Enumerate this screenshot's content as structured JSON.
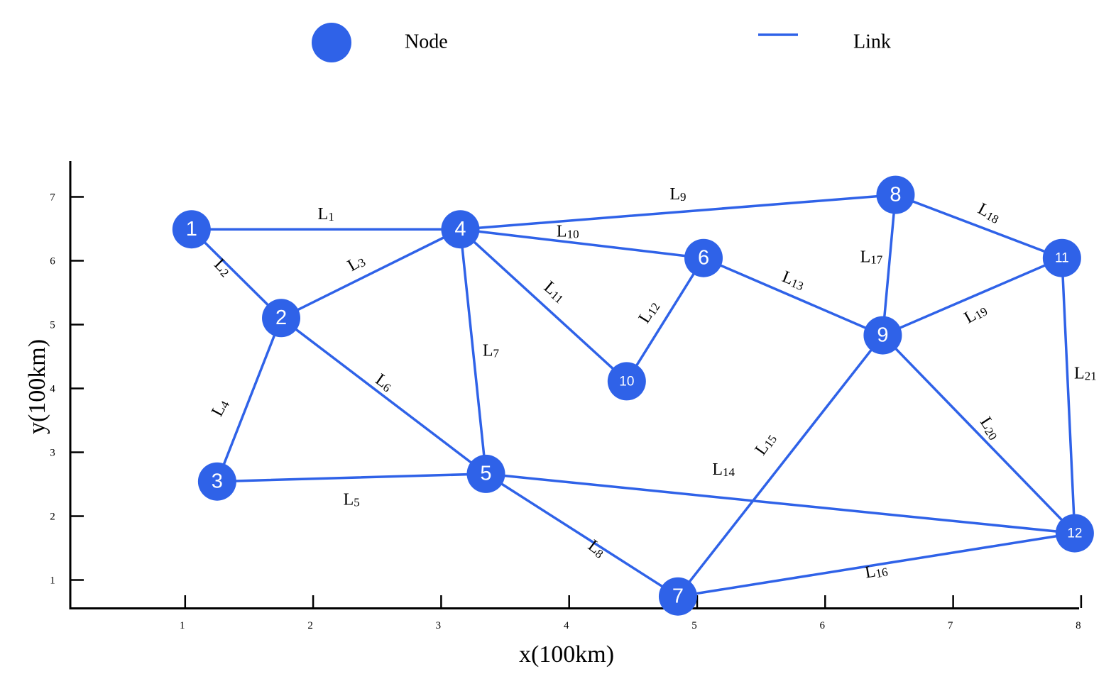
{
  "chart_data": {
    "type": "network",
    "legend": {
      "node_label": "Node",
      "link_label": "Link",
      "placement": "top"
    },
    "xlabel": "x(100km)",
    "ylabel": "y(100km)",
    "x_ticks": [
      "1",
      "2",
      "3",
      "4",
      "5",
      "6",
      "7",
      "8"
    ],
    "y_ticks": [
      "1",
      "2",
      "3",
      "4",
      "5",
      "6",
      "7"
    ],
    "xlim": [
      0.1,
      8.1
    ],
    "ylim": [
      0.1,
      7.2
    ],
    "colors": {
      "node": "#2f62e8",
      "link": "#2f62e8",
      "axis": "#000000"
    },
    "nodes": [
      {
        "id": "1",
        "x": 1.05,
        "y": 6.47
      },
      {
        "id": "2",
        "x": 1.75,
        "y": 5.08
      },
      {
        "id": "3",
        "x": 1.25,
        "y": 2.52
      },
      {
        "id": "4",
        "x": 3.15,
        "y": 6.47
      },
      {
        "id": "5",
        "x": 3.35,
        "y": 2.64
      },
      {
        "id": "6",
        "x": 5.05,
        "y": 6.02
      },
      {
        "id": "7",
        "x": 4.85,
        "y": 0.72
      },
      {
        "id": "8",
        "x": 6.55,
        "y": 7.01
      },
      {
        "id": "9",
        "x": 6.45,
        "y": 4.81
      },
      {
        "id": "10",
        "x": 4.45,
        "y": 4.09
      },
      {
        "id": "11",
        "x": 7.85,
        "y": 6.02
      },
      {
        "id": "12",
        "x": 7.95,
        "y": 1.71
      }
    ],
    "links": [
      {
        "label": "L",
        "sub": "1",
        "from": "1",
        "to": "4"
      },
      {
        "label": "L",
        "sub": "2",
        "from": "1",
        "to": "2"
      },
      {
        "label": "L",
        "sub": "3",
        "from": "2",
        "to": "4"
      },
      {
        "label": "L",
        "sub": "4",
        "from": "2",
        "to": "3"
      },
      {
        "label": "L",
        "sub": "5",
        "from": "3",
        "to": "5"
      },
      {
        "label": "L",
        "sub": "6",
        "from": "2",
        "to": "5"
      },
      {
        "label": "L",
        "sub": "7",
        "from": "4",
        "to": "5"
      },
      {
        "label": "L",
        "sub": "8",
        "from": "5",
        "to": "7"
      },
      {
        "label": "L",
        "sub": "9",
        "from": "4",
        "to": "8"
      },
      {
        "label": "L",
        "sub": "10",
        "from": "4",
        "to": "6"
      },
      {
        "label": "L",
        "sub": "11",
        "from": "4",
        "to": "10"
      },
      {
        "label": "L",
        "sub": "12",
        "from": "6",
        "to": "10"
      },
      {
        "label": "L",
        "sub": "13",
        "from": "6",
        "to": "9"
      },
      {
        "label": "L",
        "sub": "14",
        "from": "5",
        "to": "12"
      },
      {
        "label": "L",
        "sub": "15",
        "from": "7",
        "to": "9"
      },
      {
        "label": "L",
        "sub": "16",
        "from": "7",
        "to": "12"
      },
      {
        "label": "L",
        "sub": "17",
        "from": "8",
        "to": "9"
      },
      {
        "label": "L",
        "sub": "18",
        "from": "8",
        "to": "11"
      },
      {
        "label": "L",
        "sub": "19",
        "from": "9",
        "to": "11"
      },
      {
        "label": "L",
        "sub": "20",
        "from": "9",
        "to": "12"
      },
      {
        "label": "L",
        "sub": "21",
        "from": "11",
        "to": "12"
      }
    ]
  }
}
